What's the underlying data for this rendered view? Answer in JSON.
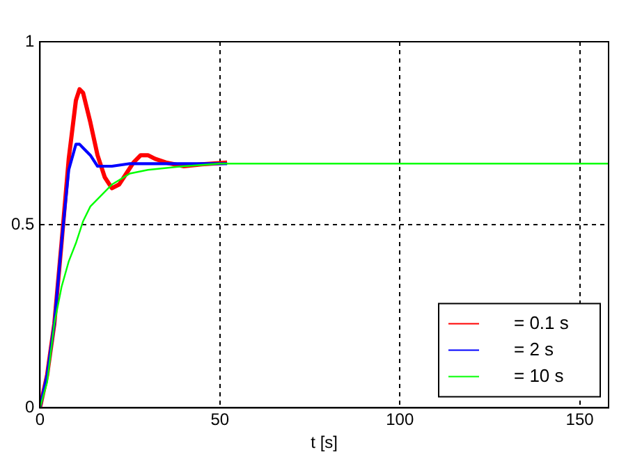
{
  "chart_data": {
    "type": "line",
    "xlabel": "t [s]",
    "xlim": [
      0,
      158
    ],
    "xticks": [
      0,
      50,
      100,
      150
    ],
    "ylim": [
      0,
      1
    ],
    "yticks": [
      0,
      0.5,
      1
    ],
    "grid": true,
    "legend": "bottom right",
    "marker": "none",
    "line_style": "solid",
    "series": [
      {
        "name": "= 0.1 s",
        "color": "#ff0000",
        "x": [
          0,
          2,
          4,
          6,
          8,
          10,
          11,
          12,
          14,
          16,
          18,
          20,
          22,
          24,
          26,
          28,
          30,
          32,
          35,
          40,
          45,
          52
        ],
        "values": [
          0,
          0.09,
          0.23,
          0.45,
          0.68,
          0.84,
          0.87,
          0.86,
          0.78,
          0.69,
          0.63,
          0.6,
          0.61,
          0.64,
          0.67,
          0.69,
          0.69,
          0.68,
          0.67,
          0.66,
          0.665,
          0.67
        ]
      },
      {
        "name": "= 2 s",
        "color": "#0000ff",
        "x": [
          0,
          2,
          4,
          6,
          8,
          10,
          11,
          12,
          14,
          16,
          18,
          20,
          25,
          30,
          40,
          52
        ],
        "values": [
          0,
          0.09,
          0.23,
          0.45,
          0.65,
          0.72,
          0.72,
          0.71,
          0.69,
          0.66,
          0.66,
          0.66,
          0.667,
          0.667,
          0.667,
          0.667
        ]
      },
      {
        "name": "= 10 s",
        "color": "#00ff00",
        "x": [
          0,
          2,
          4,
          6,
          8,
          10,
          12,
          14,
          16,
          20,
          25,
          30,
          40,
          50,
          158
        ],
        "values": [
          0,
          0.07,
          0.23,
          0.33,
          0.4,
          0.45,
          0.51,
          0.55,
          0.57,
          0.61,
          0.64,
          0.65,
          0.66,
          0.667,
          0.667
        ]
      }
    ]
  }
}
